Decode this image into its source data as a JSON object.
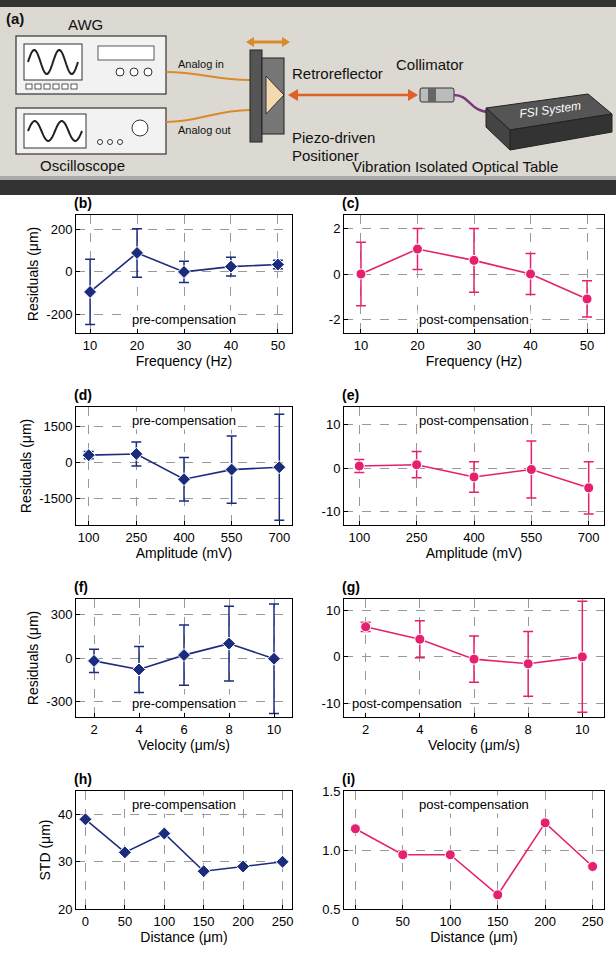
{
  "diagram": {
    "panel": "(a)",
    "labels": {
      "awg": "AWG",
      "analog_in": "Analog in",
      "analog_out": "Analog out",
      "oscilloscope": "Oscilloscope",
      "retroreflector": "Retroreflector",
      "positioner": "Piezo-driven Positioner",
      "collimator": "Collimator",
      "fsi": "FSI System",
      "table": "Vibration Isolated Optical Table"
    }
  },
  "chart_data": [
    {
      "type": "line",
      "panel": "(b)",
      "annotation": "pre-compensation",
      "x_label": "Frequency (Hz)",
      "y_label": "Residuals (μm)",
      "x": [
        10,
        20,
        30,
        40,
        50
      ],
      "values": [
        -95,
        90,
        0,
        25,
        35
      ],
      "error": [
        155,
        115,
        50,
        45,
        20
      ],
      "color": "#1c2c7d",
      "marker": "diamond",
      "line_style": "solid",
      "xlim": [
        7,
        53
      ],
      "xticks": [
        10,
        20,
        30,
        40,
        50
      ],
      "ylim": [
        -290,
        270
      ],
      "yticks": [
        -200,
        0,
        200
      ],
      "grid": true
    },
    {
      "type": "line",
      "panel": "(c)",
      "annotation": "post-compensation",
      "x_label": "Frequency (Hz)",
      "x": [
        10,
        20,
        30,
        40,
        50
      ],
      "values": [
        0,
        1.1,
        0.6,
        0,
        -1.1
      ],
      "error": [
        1.4,
        0.9,
        1.4,
        0.9,
        0.8
      ],
      "color": "#e5216f",
      "marker": "circle",
      "line_style": "solid",
      "xlim": [
        7,
        53
      ],
      "xticks": [
        10,
        20,
        30,
        40,
        50
      ],
      "ylim": [
        -2.6,
        2.6
      ],
      "yticks": [
        -2,
        0,
        2
      ],
      "grid": true
    },
    {
      "type": "line",
      "panel": "(d)",
      "annotation": "pre-compensation",
      "x_label": "Amplitude (mV)",
      "y_label": "Residuals (μm)",
      "x": [
        100,
        250,
        400,
        550,
        700
      ],
      "values": [
        300,
        350,
        -700,
        -300,
        -200
      ],
      "error": [
        150,
        500,
        900,
        1400,
        2200
      ],
      "color": "#1c2c7d",
      "marker": "diamond",
      "line_style": "solid",
      "xlim": [
        60,
        740
      ],
      "xticks": [
        100,
        250,
        400,
        550,
        700
      ],
      "ylim": [
        -2600,
        2300
      ],
      "yticks": [
        -1500,
        0,
        1500
      ],
      "grid": true
    },
    {
      "type": "line",
      "panel": "(e)",
      "annotation": "post-compensation",
      "x_label": "Amplitude (mV)",
      "x": [
        100,
        250,
        400,
        550,
        700
      ],
      "values": [
        0.5,
        0.8,
        -2,
        -0.3,
        -4.5
      ],
      "error": [
        1.5,
        3,
        3.5,
        6.5,
        6
      ],
      "color": "#e5216f",
      "marker": "circle",
      "line_style": "solid",
      "xlim": [
        60,
        740
      ],
      "xticks": [
        100,
        250,
        400,
        550,
        700
      ],
      "ylim": [
        -13,
        14
      ],
      "yticks": [
        -10,
        0,
        10
      ],
      "grid": true
    },
    {
      "type": "line",
      "panel": "(f)",
      "annotation": "pre-compensation",
      "x_label": "Velocity (μm/s)",
      "y_label": "Residuals (μm)",
      "x": [
        2,
        4,
        6,
        8,
        10
      ],
      "values": [
        -20,
        -80,
        20,
        100,
        -5
      ],
      "error": [
        80,
        160,
        210,
        260,
        380
      ],
      "color": "#1c2c7d",
      "marker": "diamond",
      "line_style": "solid",
      "xlim": [
        1.2,
        10.8
      ],
      "xticks": [
        2,
        4,
        6,
        8,
        10
      ],
      "ylim": [
        -410,
        410
      ],
      "yticks": [
        -300,
        0,
        300
      ],
      "grid": true
    },
    {
      "type": "line",
      "panel": "(g)",
      "annotation": "post-compensation",
      "x_label": "Velocity (μm/s)",
      "x": [
        2,
        4,
        6,
        8,
        10
      ],
      "values": [
        6.5,
        3.8,
        -0.5,
        -1.5,
        0
      ],
      "error": [
        1,
        4,
        5,
        7,
        12
      ],
      "color": "#e5216f",
      "marker": "circle",
      "line_style": "solid",
      "xlim": [
        1.2,
        10.8
      ],
      "xticks": [
        2,
        4,
        6,
        8,
        10
      ],
      "ylim": [
        -13,
        12.5
      ],
      "yticks": [
        -10,
        0,
        10
      ],
      "grid": true
    },
    {
      "type": "line",
      "panel": "(h)",
      "annotation": "pre-compensation",
      "x_label": "Distance (μm)",
      "y_label": "STD (μm)",
      "x": [
        0,
        50,
        100,
        150,
        200,
        250
      ],
      "values": [
        39,
        32,
        36,
        28,
        29,
        30
      ],
      "color": "#1c2c7d",
      "marker": "diamond",
      "line_style": "solid",
      "xlim": [
        -12,
        262
      ],
      "xticks": [
        0,
        50,
        100,
        150,
        200,
        250
      ],
      "ylim": [
        20,
        45
      ],
      "yticks": [
        20,
        30,
        40
      ],
      "grid": true
    },
    {
      "type": "line",
      "panel": "(i)",
      "annotation": "post-compensation",
      "x_label": "Distance (μm)",
      "x": [
        0,
        50,
        100,
        150,
        200,
        250
      ],
      "values": [
        1.18,
        0.96,
        0.96,
        0.62,
        1.23,
        0.86
      ],
      "color": "#e5216f",
      "marker": "circle",
      "line_style": "solid",
      "xlim": [
        -12,
        262
      ],
      "xticks": [
        0,
        50,
        100,
        150,
        200,
        250
      ],
      "ylim": [
        0.5,
        1.5
      ],
      "yticks": [
        0.5,
        {
          "value": 1,
          "label": "1.0"
        },
        1.5
      ],
      "grid": true
    }
  ]
}
